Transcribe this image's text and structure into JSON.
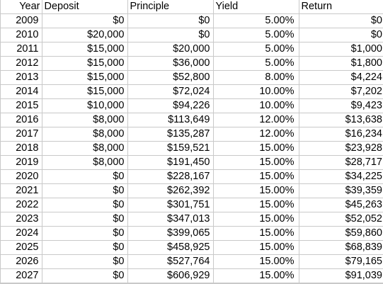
{
  "sheet": {
    "headers": [
      "Year",
      "Deposit",
      "Principle",
      "Yield",
      "Return"
    ],
    "rows": [
      [
        "2009",
        "$0",
        "$0",
        "5.00%",
        "$0"
      ],
      [
        "2010",
        "$20,000",
        "$0",
        "5.00%",
        "$0"
      ],
      [
        "2011",
        "$15,000",
        "$20,000",
        "5.00%",
        "$1,000"
      ],
      [
        "2012",
        "$15,000",
        "$36,000",
        "5.00%",
        "$1,800"
      ],
      [
        "2013",
        "$15,000",
        "$52,800",
        "8.00%",
        "$4,224"
      ],
      [
        "2014",
        "$15,000",
        "$72,024",
        "10.00%",
        "$7,202"
      ],
      [
        "2015",
        "$10,000",
        "$94,226",
        "10.00%",
        "$9,423"
      ],
      [
        "2016",
        "$8,000",
        "$113,649",
        "12.00%",
        "$13,638"
      ],
      [
        "2017",
        "$8,000",
        "$135,287",
        "12.00%",
        "$16,234"
      ],
      [
        "2018",
        "$8,000",
        "$159,521",
        "15.00%",
        "$23,928"
      ],
      [
        "2019",
        "$8,000",
        "$191,450",
        "15.00%",
        "$28,717"
      ],
      [
        "2020",
        "$0",
        "$228,167",
        "15.00%",
        "$34,225"
      ],
      [
        "2021",
        "$0",
        "$262,392",
        "15.00%",
        "$39,359"
      ],
      [
        "2022",
        "$0",
        "$301,751",
        "15.00%",
        "$45,263"
      ],
      [
        "2023",
        "$0",
        "$347,013",
        "15.00%",
        "$52,052"
      ],
      [
        "2024",
        "$0",
        "$399,065",
        "15.00%",
        "$59,860"
      ],
      [
        "2025",
        "$0",
        "$458,925",
        "15.00%",
        "$68,839"
      ],
      [
        "2026",
        "$0",
        "$527,764",
        "15.00%",
        "$79,165"
      ],
      [
        "2027",
        "$0",
        "$606,929",
        "15.00%",
        "$91,039"
      ]
    ]
  },
  "colors": {
    "gridline": "#c9c9c9",
    "text": "#000000",
    "background": "#ffffff"
  }
}
